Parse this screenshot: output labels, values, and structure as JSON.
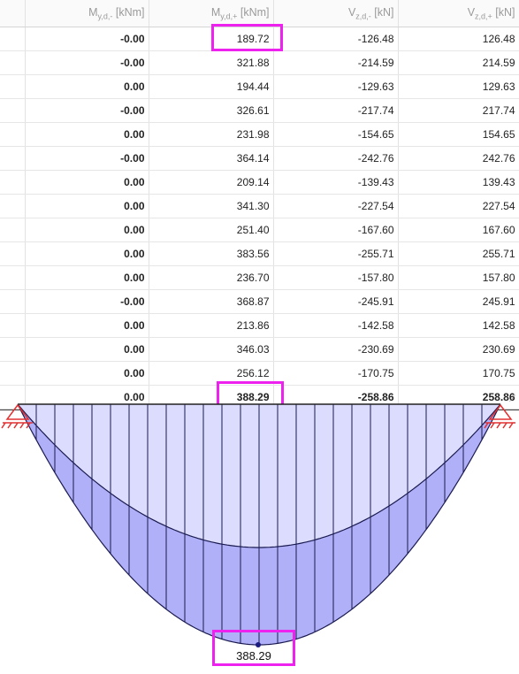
{
  "table": {
    "headers": [
      {
        "base": "M",
        "sub": "y,d,-",
        "unit": " [kNm]"
      },
      {
        "base": "M",
        "sub": "y,d,+",
        "unit": " [kNm]"
      },
      {
        "base": "V",
        "sub": "z,d,-",
        "unit": " [kN]"
      },
      {
        "base": "V",
        "sub": "z,d,+",
        "unit": " [kN]"
      }
    ],
    "rows": [
      [
        "-0.00",
        "189.72",
        "-126.48",
        "126.48"
      ],
      [
        "-0.00",
        "321.88",
        "-214.59",
        "214.59"
      ],
      [
        "0.00",
        "194.44",
        "-129.63",
        "129.63"
      ],
      [
        "-0.00",
        "326.61",
        "-217.74",
        "217.74"
      ],
      [
        "0.00",
        "231.98",
        "-154.65",
        "154.65"
      ],
      [
        "-0.00",
        "364.14",
        "-242.76",
        "242.76"
      ],
      [
        "0.00",
        "209.14",
        "-139.43",
        "139.43"
      ],
      [
        "0.00",
        "341.30",
        "-227.54",
        "227.54"
      ],
      [
        "0.00",
        "251.40",
        "-167.60",
        "167.60"
      ],
      [
        "0.00",
        "383.56",
        "-255.71",
        "255.71"
      ],
      [
        "0.00",
        "236.70",
        "-157.80",
        "157.80"
      ],
      [
        "-0.00",
        "368.87",
        "-245.91",
        "245.91"
      ],
      [
        "0.00",
        "213.86",
        "-142.58",
        "142.58"
      ],
      [
        "0.00",
        "346.03",
        "-230.69",
        "230.69"
      ],
      [
        "0.00",
        "256.12",
        "-170.75",
        "170.75"
      ]
    ],
    "summary": [
      "0.00",
      "388.29",
      "-258.86",
      "258.86"
    ]
  },
  "diagram": {
    "max_label": "388.29",
    "inner_fill": "#dcdcff",
    "outer_fill": "#b0b0f8",
    "highlight_color": "#ee22ee"
  }
}
